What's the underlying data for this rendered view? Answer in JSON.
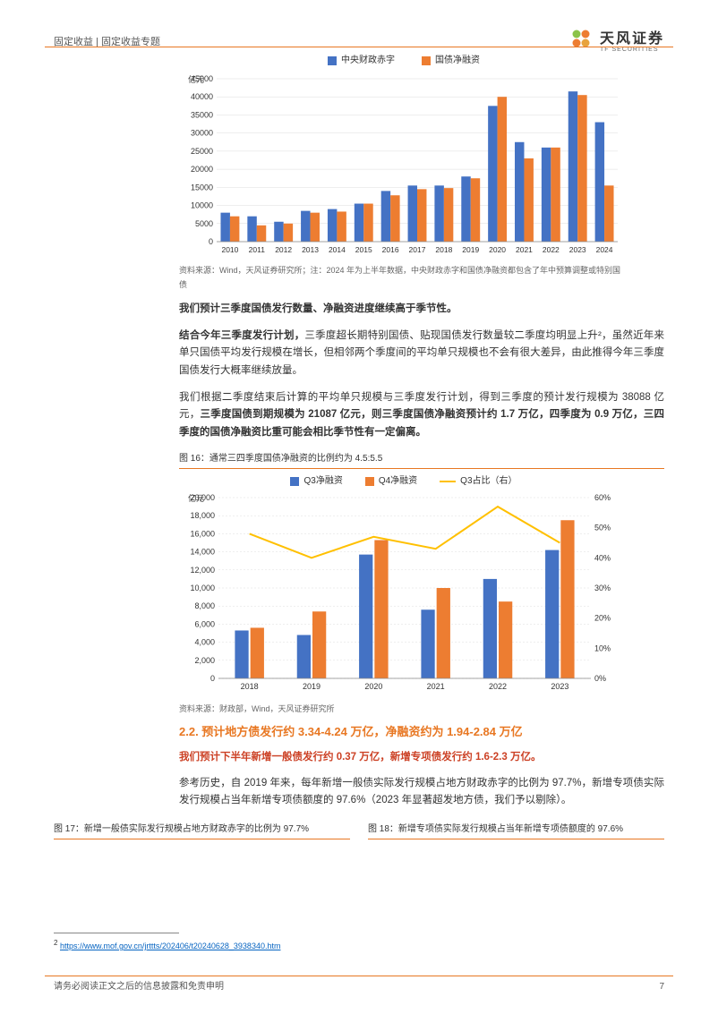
{
  "colors": {
    "accent": "#e87722",
    "blue": "#4472c4",
    "orange": "#ed7d31",
    "yellow": "#ffc000",
    "grid": "#dddddd",
    "text": "#333333",
    "red": "#cc4125",
    "link": "#0563c1"
  },
  "header": {
    "breadcrumb": "固定收益 | 固定收益专题",
    "company_cn": "天风证券",
    "company_en": "TF SECURITIES"
  },
  "chart1": {
    "type": "grouped-bar",
    "y_unit": "亿元",
    "legend": [
      {
        "label": "中央财政赤字",
        "color": "#4472c4"
      },
      {
        "label": "国债净融资",
        "color": "#ed7d31"
      }
    ],
    "categories": [
      "2010",
      "2011",
      "2012",
      "2013",
      "2014",
      "2015",
      "2016",
      "2017",
      "2018",
      "2019",
      "2020",
      "2021",
      "2022",
      "2023",
      "2024"
    ],
    "series": {
      "deficit": [
        8000,
        7000,
        5500,
        8500,
        9000,
        10500,
        14000,
        15500,
        15500,
        18000,
        37500,
        27500,
        26000,
        41500,
        33000
      ],
      "netfin": [
        7000,
        4500,
        5000,
        8000,
        8300,
        10500,
        12800,
        14500,
        14800,
        17500,
        40000,
        23000,
        26000,
        40500,
        15500
      ]
    },
    "ylim": [
      0,
      45000
    ],
    "ytick_step": 5000,
    "bar_width": 0.35,
    "background_color": "#ffffff",
    "source": "资料来源：Wind，天风证券研究所；注：2024 年为上半年数据，中央财政赤字和国债净融资都包含了年中预算调整或特别国债"
  },
  "para1": "我们预计三季度国债发行数量、净融资进度继续高于季节性。",
  "para2_prefix": "结合今年三季度发行计划，",
  "para2_rest": "三季度超长期特别国债、贴现国债发行数量较二季度均明显上升²，虽然近年来单只国债平均发行规模在增长，但相邻两个季度间的平均单只规模也不会有很大差异，由此推得今年三季度国债发行大概率继续放量。",
  "para3_a": "我们根据二季度结束后计算的平均单只规模与三季度发行计划，得到三季度的预计发行规模为 38088 亿元，",
  "para3_b": "三季度国债到期规模为 21087 亿元，则三季度国债净融资预计约 1.7 万亿，四季度为 0.9 万亿，三四季度的国债净融资比重可能会相比季节性有一定偏离。",
  "fig16_title": "图 16：通常三四季度国债净融资的比例约为 4.5:5.5",
  "chart2": {
    "type": "bar-line",
    "y_unit": "亿元",
    "legend": [
      {
        "label": "Q3净融资",
        "color": "#4472c4",
        "kind": "bar"
      },
      {
        "label": "Q4净融资",
        "color": "#ed7d31",
        "kind": "bar"
      },
      {
        "label": "Q3占比（右）",
        "color": "#ffc000",
        "kind": "line"
      }
    ],
    "categories": [
      "2018",
      "2019",
      "2020",
      "2021",
      "2022",
      "2023"
    ],
    "series": {
      "q3": [
        5300,
        4800,
        13700,
        7600,
        11000,
        14200
      ],
      "q4": [
        5600,
        7400,
        15300,
        10000,
        8500,
        17500
      ],
      "ratio_pct": [
        48,
        40,
        47,
        43,
        57,
        45
      ]
    },
    "ylim_left": [
      0,
      20000
    ],
    "ytick_left_step": 2000,
    "ylim_right": [
      0,
      60
    ],
    "ytick_right_step": 10,
    "right_axis_format": "%",
    "background_color": "#ffffff",
    "source": "资料来源：财政部，Wind，天风证券研究所"
  },
  "section22": "2.2. 预计地方债发行约 3.34-4.24 万亿，净融资约为 1.94-2.84 万亿",
  "red_line": "我们预计下半年新增一般债发行约 0.37 万亿，新增专项债发行约 1.6-2.3 万亿。",
  "para4": "参考历史，自 2019 年来，每年新增一般债实际发行规模占地方财政赤字的比例为 97.7%，新增专项债实际发行规模占当年新增专项债额度的 97.6%（2023 年显著超发地方债，我们予以剔除）。",
  "fig17_title": "图 17：新增一般债实际发行规模占地方财政赤字的比例为 97.7%",
  "fig18_title": "图 18：新增专项债实际发行规模占当年新增专项债额度的 97.6%",
  "footnote": {
    "num": "2",
    "url": "https://www.mof.gov.cn/jrttts/202406/t20240628_3938340.htm"
  },
  "footer": {
    "disclaimer": "请务必阅读正文之后的信息披露和免责申明",
    "page": "7"
  }
}
